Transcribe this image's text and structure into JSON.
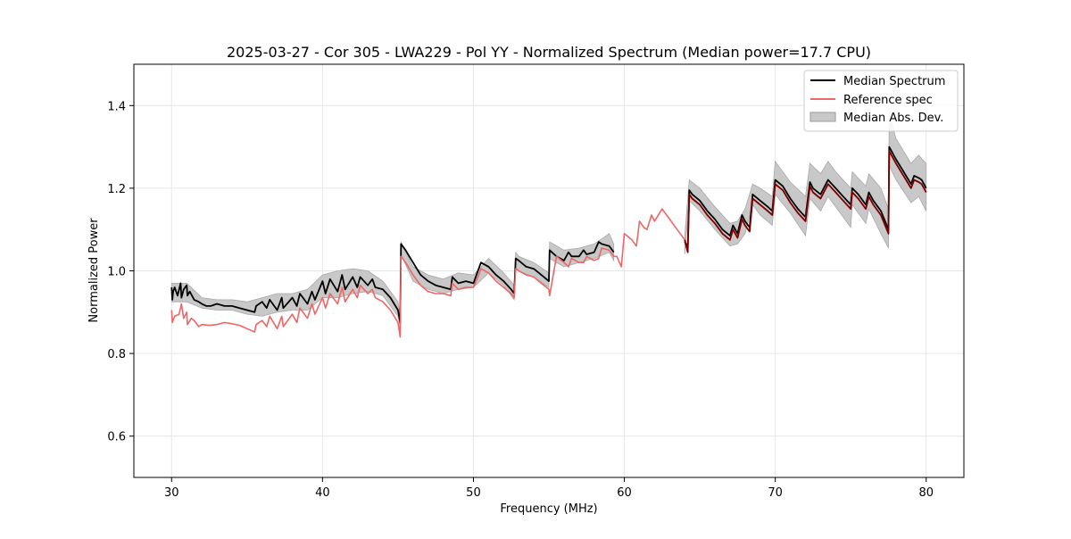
{
  "chart_data": {
    "type": "line",
    "title": "2025-03-27 - Cor 305 - LWA229 - Pol YY - Normalized Spectrum (Median power=17.7 CPU)",
    "xlabel": "Frequency (MHz)",
    "ylabel": "Normalized Power",
    "xlim": [
      27.5,
      82.5
    ],
    "ylim": [
      0.5,
      1.5
    ],
    "xticks": [
      30,
      40,
      50,
      60,
      70,
      80
    ],
    "xtick_labels": [
      "30",
      "40",
      "50",
      "60",
      "70",
      "80"
    ],
    "yticks": [
      0.6,
      0.8,
      1.0,
      1.2,
      1.4
    ],
    "ytick_labels": [
      "0.6",
      "0.8",
      "1.0",
      "1.2",
      "1.4"
    ],
    "grid": true,
    "legend_position": "upper right",
    "legend": [
      "Median Spectrum",
      "Reference spec",
      "Median Abs. Dev."
    ],
    "colors": {
      "median": "#000000",
      "reference": "#ee6666",
      "mad_fill": "#c8c8c8",
      "overlap": "#7a0000"
    },
    "series": [
      {
        "name": "Median Spectrum",
        "segments": [
          {
            "x": [
              30,
              30.05,
              30.1,
              30.2,
              30.4,
              30.6,
              30.65,
              30.8,
              31.0,
              31.05,
              31.2,
              31.5,
              31.8,
              32.0,
              32.3,
              32.6,
              33.0,
              33.5,
              34.0,
              34.5,
              35.0,
              35.5,
              35.6,
              36.0,
              36.3,
              36.5,
              37.0,
              37.3,
              37.4,
              38.0,
              38.3,
              38.5,
              39.0,
              39.3,
              39.5,
              40.0,
              40.2,
              40.5,
              41.0,
              41.3,
              41.5,
              42.0,
              42.3,
              42.5,
              43.0,
              43.3,
              43.5,
              44.0,
              44.5,
              45.0,
              45.15,
              45.2,
              45.5,
              46.0,
              46.5,
              47.0,
              47.5,
              48.0,
              48.5,
              48.6,
              49.0,
              49.5,
              50.0,
              50.3,
              50.5,
              51.0,
              51.5,
              52.0,
              52.5,
              52.7,
              52.8,
              53.0,
              53.5,
              54.0,
              54.5,
              55.0,
              55.05,
              55.5,
              56.0,
              56.3,
              56.5,
              57.0,
              57.3,
              57.5,
              58.0,
              58.3,
              58.5,
              59.0,
              59.3
            ],
            "y": [
              0.96,
              0.93,
              0.95,
              0.96,
              0.94,
              0.97,
              0.935,
              0.955,
              0.965,
              0.94,
              0.95,
              0.93,
              0.925,
              0.92,
              0.915,
              0.915,
              0.92,
              0.915,
              0.915,
              0.91,
              0.905,
              0.9,
              0.915,
              0.925,
              0.91,
              0.93,
              0.905,
              0.935,
              0.91,
              0.935,
              0.915,
              0.945,
              0.92,
              0.95,
              0.93,
              0.975,
              0.945,
              0.98,
              0.95,
              0.99,
              0.955,
              0.985,
              0.96,
              0.985,
              0.965,
              0.98,
              0.96,
              0.955,
              0.935,
              0.905,
              0.875,
              1.065,
              1.05,
              1.02,
              0.99,
              0.975,
              0.965,
              0.96,
              0.955,
              0.985,
              0.97,
              0.975,
              0.97,
              1.0,
              1.02,
              1.01,
              0.99,
              0.975,
              0.955,
              0.945,
              1.03,
              1.025,
              1.01,
              1.005,
              0.99,
              0.975,
              1.05,
              1.035,
              1.025,
              1.045,
              1.035,
              1.035,
              1.05,
              1.04,
              1.045,
              1.07,
              1.065,
              1.06,
              1.045
            ]
          },
          {
            "x": [
              64.0,
              64.2,
              64.3,
              64.5,
              65.0,
              65.5,
              66.0,
              66.5,
              67.0,
              67.2,
              67.5,
              67.8,
              68.0,
              68.3,
              68.5,
              69.0,
              69.5,
              69.8,
              70.0,
              70.5,
              71.0,
              71.5,
              72.0,
              72.3,
              72.5,
              73.0,
              73.5,
              74.0,
              74.5,
              75.0,
              75.1,
              75.5,
              76.0,
              76.2,
              76.5,
              77.0,
              77.5,
              77.55,
              78.0,
              78.5,
              79.0,
              79.2,
              79.5,
              79.7,
              80.0
            ],
            "y": [
              1.07,
              1.06,
              1.195,
              1.185,
              1.17,
              1.145,
              1.125,
              1.1,
              1.085,
              1.11,
              1.09,
              1.135,
              1.12,
              1.105,
              1.185,
              1.17,
              1.155,
              1.145,
              1.22,
              1.205,
              1.175,
              1.15,
              1.13,
              1.215,
              1.2,
              1.185,
              1.22,
              1.2,
              1.18,
              1.16,
              1.2,
              1.185,
              1.16,
              1.19,
              1.17,
              1.145,
              1.1,
              1.3,
              1.27,
              1.24,
              1.21,
              1.23,
              1.225,
              1.22,
              1.2
            ]
          }
        ]
      },
      {
        "name": "Reference spec",
        "segments": [
          {
            "x": [
              30,
              30.05,
              30.2,
              30.5,
              30.65,
              30.8,
              31.0,
              31.05,
              31.3,
              31.5,
              31.8,
              32.0,
              32.5,
              33.0,
              33.5,
              34.0,
              34.5,
              35.0,
              35.5,
              35.6,
              36.0,
              36.3,
              36.5,
              37.0,
              37.3,
              37.4,
              38.0,
              38.3,
              38.5,
              39.0,
              39.3,
              39.5,
              40.0,
              40.2,
              40.5,
              41.0,
              41.3,
              41.5,
              42.0,
              42.3,
              42.5,
              43.0,
              43.3,
              43.5,
              44.0,
              44.5,
              45.0,
              45.15,
              45.2,
              45.5,
              46.0,
              46.5,
              47.0,
              47.5,
              48.0,
              48.5,
              48.6,
              49.0,
              49.5,
              50.0,
              50.3,
              50.5,
              51.0,
              51.5,
              52.0,
              52.5,
              52.7,
              52.8,
              53.0,
              53.5,
              54.0,
              54.5,
              55.0,
              55.05,
              55.5,
              56.0,
              56.3,
              56.5,
              57.0,
              57.3,
              57.5,
              58.0,
              58.3,
              58.5,
              59.0,
              59.3,
              59.5,
              59.8,
              60.0,
              60.5,
              60.8,
              61.0,
              61.3,
              61.5,
              61.8,
              62.0,
              62.5,
              63.0,
              63.5,
              64.0,
              64.2,
              64.3,
              64.5,
              65.0,
              65.5,
              66.0,
              66.5,
              67.0,
              67.2,
              67.5,
              67.8,
              68.0,
              68.3,
              68.5,
              69.0,
              69.5,
              69.8,
              70.0,
              70.5,
              71.0,
              71.5,
              72.0,
              72.3,
              72.5,
              73.0,
              73.5,
              74.0,
              74.5,
              75.0,
              75.1,
              75.5,
              76.0,
              76.2,
              76.5,
              77.0,
              77.5,
              77.55,
              78.0,
              78.5,
              79.0,
              79.2,
              79.5,
              79.7,
              80.0
            ],
            "y": [
              0.905,
              0.875,
              0.89,
              0.895,
              0.92,
              0.885,
              0.9,
              0.87,
              0.885,
              0.88,
              0.865,
              0.87,
              0.868,
              0.87,
              0.875,
              0.872,
              0.868,
              0.86,
              0.852,
              0.87,
              0.88,
              0.865,
              0.89,
              0.86,
              0.89,
              0.865,
              0.895,
              0.875,
              0.91,
              0.885,
              0.92,
              0.895,
              0.935,
              0.91,
              0.945,
              0.92,
              0.96,
              0.925,
              0.955,
              0.935,
              0.965,
              0.945,
              0.955,
              0.935,
              0.925,
              0.905,
              0.875,
              0.84,
              1.035,
              1.02,
              0.99,
              0.965,
              0.95,
              0.945,
              0.945,
              0.94,
              0.97,
              0.955,
              0.96,
              0.96,
              0.985,
              1.005,
              0.995,
              0.975,
              0.96,
              0.945,
              0.935,
              1.005,
              1.0,
              0.99,
              0.985,
              0.97,
              0.955,
              0.94,
              1.035,
              1.02,
              1.01,
              1.03,
              1.02,
              1.02,
              1.035,
              1.025,
              1.03,
              1.055,
              1.05,
              1.035,
              1.035,
              1.01,
              1.09,
              1.075,
              1.06,
              1.12,
              1.105,
              1.1,
              1.135,
              1.12,
              1.15,
              1.125,
              1.1,
              1.075,
              1.045,
              1.185,
              1.175,
              1.16,
              1.135,
              1.115,
              1.09,
              1.075,
              1.1,
              1.08,
              1.125,
              1.11,
              1.095,
              1.175,
              1.16,
              1.145,
              1.135,
              1.21,
              1.195,
              1.165,
              1.14,
              1.12,
              1.205,
              1.19,
              1.175,
              1.21,
              1.19,
              1.17,
              1.15,
              1.19,
              1.175,
              1.15,
              1.18,
              1.16,
              1.135,
              1.09,
              1.29,
              1.26,
              1.23,
              1.2,
              1.22,
              1.215,
              1.21,
              1.19
            ]
          }
        ]
      },
      {
        "name": "Median Abs. Dev.",
        "bands": [
          {
            "x": [
              30,
              31,
              32,
              33,
              34,
              35,
              36,
              37,
              38,
              39,
              40,
              41,
              42,
              43,
              44,
              45,
              45.15,
              45.2,
              46,
              47,
              48,
              49,
              50,
              51,
              52,
              52.7,
              52.8,
              53,
              54,
              55,
              55.05,
              56,
              57,
              58,
              59,
              59.3
            ],
            "lower": [
              0.925,
              0.925,
              0.91,
              0.905,
              0.905,
              0.895,
              0.89,
              0.9,
              0.905,
              0.905,
              0.935,
              0.935,
              0.945,
              0.95,
              0.94,
              0.89,
              0.86,
              1.04,
              0.975,
              0.955,
              0.945,
              0.955,
              0.96,
              0.995,
              0.965,
              0.93,
              1.01,
              1.0,
              0.985,
              0.96,
              1.03,
              1.01,
              1.02,
              1.03,
              1.045,
              1.025
            ],
            "upper": [
              0.97,
              0.97,
              0.935,
              0.93,
              0.93,
              0.925,
              0.935,
              0.945,
              0.945,
              0.955,
              0.99,
              1.0,
              1.005,
              1.0,
              0.975,
              0.925,
              0.89,
              1.07,
              1.01,
              0.99,
              0.98,
              0.995,
              0.99,
              1.03,
              0.995,
              0.965,
              1.045,
              1.035,
              1.02,
              0.995,
              1.07,
              1.05,
              1.055,
              1.065,
              1.09,
              1.065
            ]
          },
          {
            "x": [
              64.0,
              64.3,
              65,
              66,
              67,
              67.5,
              68,
              68.5,
              69,
              69.8,
              70,
              71,
              72,
              72.3,
              73,
              73.5,
              74,
              75,
              75.1,
              76,
              76.2,
              77,
              77.5,
              77.55,
              78,
              79,
              79.5,
              80
            ],
            "lower": [
              1.04,
              1.17,
              1.145,
              1.1,
              1.06,
              1.065,
              1.09,
              1.16,
              1.135,
              1.11,
              1.185,
              1.14,
              1.085,
              1.175,
              1.145,
              1.18,
              1.155,
              1.105,
              1.16,
              1.115,
              1.15,
              1.09,
              1.055,
              1.255,
              1.22,
              1.165,
              1.18,
              1.145
            ],
            "upper": [
              1.085,
              1.22,
              1.2,
              1.155,
              1.115,
              1.12,
              1.15,
              1.21,
              1.2,
              1.18,
              1.265,
              1.215,
              1.18,
              1.26,
              1.235,
              1.265,
              1.24,
              1.2,
              1.24,
              1.205,
              1.235,
              1.2,
              1.15,
              1.38,
              1.32,
              1.26,
              1.28,
              1.26
            ]
          }
        ]
      }
    ]
  }
}
